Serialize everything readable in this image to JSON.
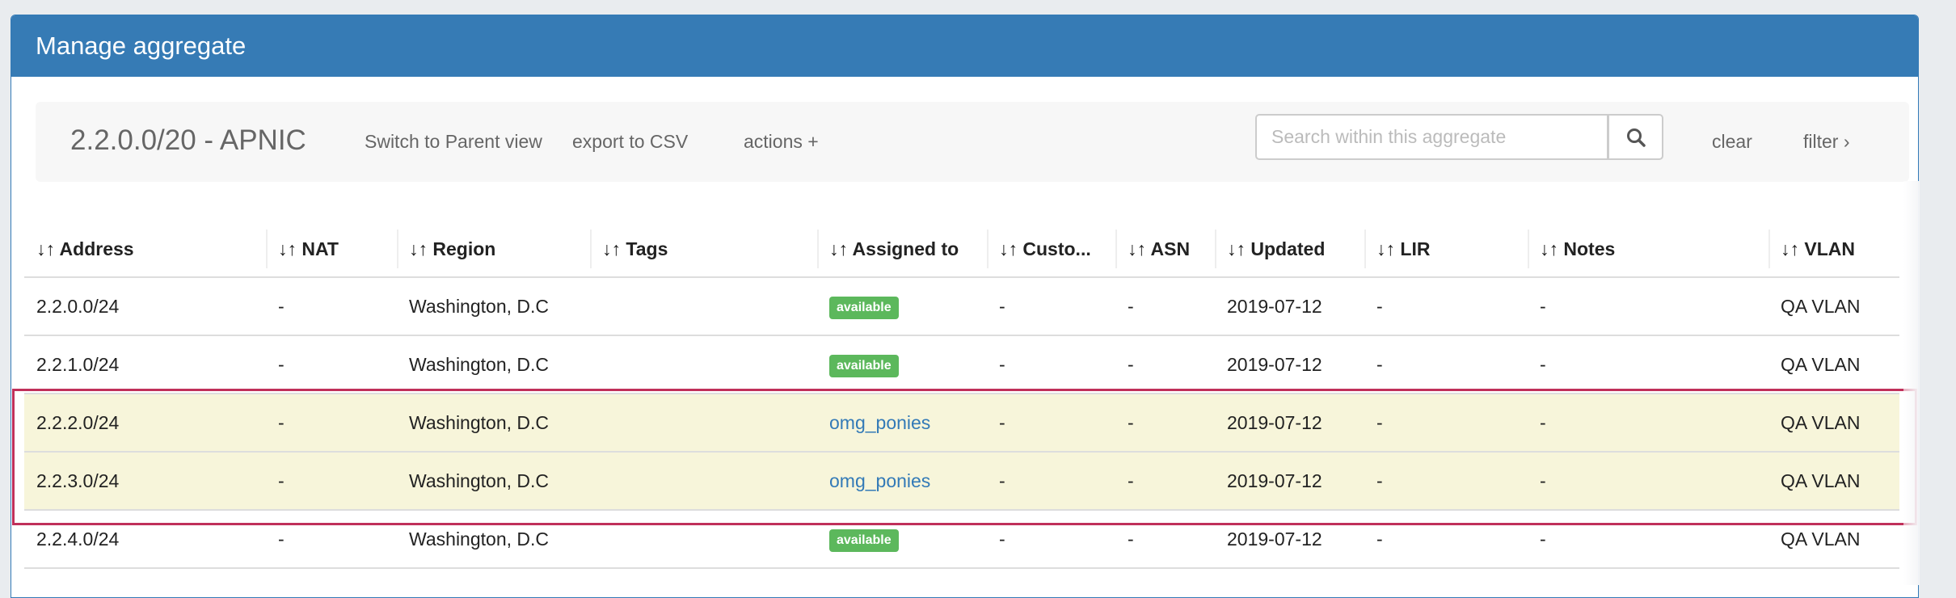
{
  "panel": {
    "title": "Manage aggregate"
  },
  "toolbar": {
    "aggregate_title": "2.2.0.0/20 - APNIC",
    "switch_parent": "Switch to Parent view",
    "export_csv": "export to CSV",
    "actions": "actions +",
    "search_placeholder": "Search within this aggregate",
    "search_value": "",
    "clear": "clear",
    "filter": "filter ›"
  },
  "table": {
    "sort_icon": "sort-arrows-icon",
    "columns": [
      "Address",
      "NAT",
      "Region",
      "Tags",
      "Assigned to",
      "Custo...",
      "ASN",
      "Updated",
      "LIR",
      "Notes",
      "VLAN"
    ],
    "rows": [
      {
        "address": "2.2.0.0/24",
        "nat": "-",
        "region": "Washington, D.C",
        "tags": "",
        "assigned": "available",
        "assigned_type": "badge",
        "customer": "-",
        "asn": "-",
        "updated": "2019-07-12",
        "lir": "-",
        "notes": "-",
        "vlan": "QA VLAN",
        "highlighted": false
      },
      {
        "address": "2.2.1.0/24",
        "nat": "-",
        "region": "Washington, D.C",
        "tags": "",
        "assigned": "available",
        "assigned_type": "badge",
        "customer": "-",
        "asn": "-",
        "updated": "2019-07-12",
        "lir": "-",
        "notes": "-",
        "vlan": "QA VLAN",
        "highlighted": false
      },
      {
        "address": "2.2.2.0/24",
        "nat": "-",
        "region": "Washington, D.C",
        "tags": "",
        "assigned": "omg_ponies",
        "assigned_type": "link",
        "customer": "-",
        "asn": "-",
        "updated": "2019-07-12",
        "lir": "-",
        "notes": "-",
        "vlan": "QA VLAN",
        "highlighted": true
      },
      {
        "address": "2.2.3.0/24",
        "nat": "-",
        "region": "Washington, D.C",
        "tags": "",
        "assigned": "omg_ponies",
        "assigned_type": "link",
        "customer": "-",
        "asn": "-",
        "updated": "2019-07-12",
        "lir": "-",
        "notes": "-",
        "vlan": "QA VLAN",
        "highlighted": true
      },
      {
        "address": "2.2.4.0/24",
        "nat": "-",
        "region": "Washington, D.C",
        "tags": "",
        "assigned": "available",
        "assigned_type": "badge",
        "customer": "-",
        "asn": "-",
        "updated": "2019-07-12",
        "lir": "-",
        "notes": "-",
        "vlan": "QA VLAN",
        "highlighted": false
      }
    ]
  },
  "colors": {
    "header": "#367bb5",
    "available_badge": "#5cb85c",
    "link": "#337ab7",
    "highlight_row": "#f7f5da",
    "highlight_box": "#c0305a"
  }
}
